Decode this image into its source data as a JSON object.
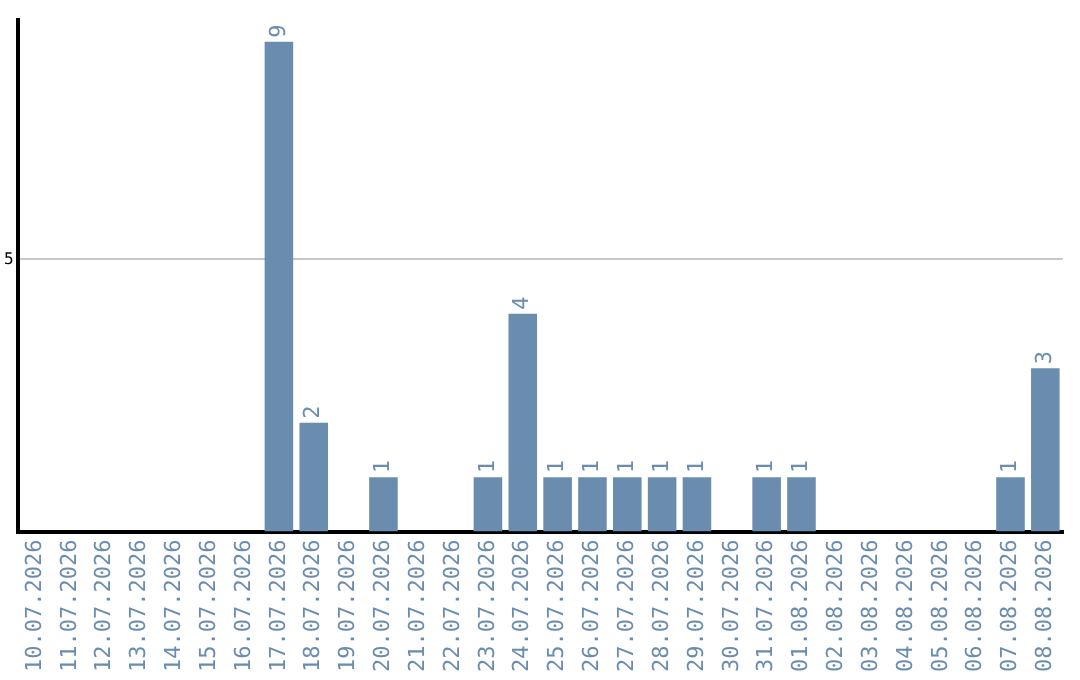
{
  "chart_data": {
    "type": "bar",
    "categories": [
      "10.07.2026",
      "11.07.2026",
      "12.07.2026",
      "13.07.2026",
      "14.07.2026",
      "15.07.2026",
      "16.07.2026",
      "17.07.2026",
      "18.07.2026",
      "19.07.2026",
      "20.07.2026",
      "21.07.2026",
      "22.07.2026",
      "23.07.2026",
      "24.07.2026",
      "25.07.2026",
      "26.07.2026",
      "27.07.2026",
      "28.07.2026",
      "29.07.2026",
      "30.07.2026",
      "31.07.2026",
      "01.08.2026",
      "02.08.2026",
      "03.08.2026",
      "04.08.2026",
      "05.08.2026",
      "06.08.2026",
      "07.08.2026",
      "08.08.2026"
    ],
    "values": [
      0,
      0,
      0,
      0,
      0,
      0,
      0,
      9,
      2,
      0,
      1,
      0,
      0,
      1,
      4,
      1,
      1,
      1,
      1,
      1,
      0,
      1,
      1,
      0,
      0,
      0,
      0,
      0,
      1,
      3
    ],
    "value_labels": [
      null,
      null,
      null,
      null,
      null,
      null,
      null,
      "9",
      "2",
      null,
      "1",
      null,
      null,
      "1",
      "4",
      "1",
      "1",
      "1",
      "1",
      "1",
      null,
      "1",
      "1",
      null,
      null,
      null,
      null,
      null,
      "1",
      "3"
    ],
    "color": "#6a8caf",
    "ylim": [
      0,
      9.4
    ],
    "yticks": [
      5
    ],
    "grid": "y",
    "legend": false
  }
}
